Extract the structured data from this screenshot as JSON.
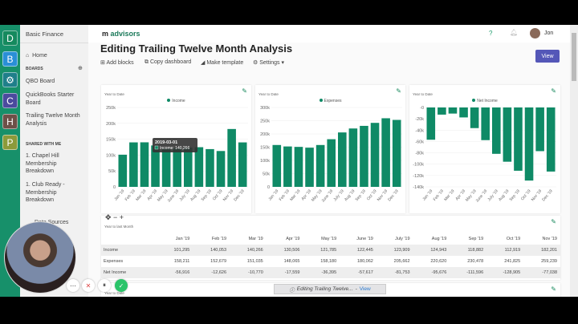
{
  "rail": {
    "tiles": [
      {
        "letter": "D",
        "color": "#158a5e"
      },
      {
        "letter": "B",
        "color": "#2a8fd6"
      },
      {
        "letter": "",
        "color": "#1f7f8a"
      },
      {
        "letter": "C",
        "color": "#4b4a9e"
      },
      {
        "letter": "H",
        "color": "#6e5048"
      },
      {
        "letter": "P",
        "color": "#8c9a3a"
      }
    ]
  },
  "sidebar": {
    "org": "Basic Finance",
    "home": "Home",
    "boards_heading": "BOARDS",
    "boards": [
      "QBO Board",
      "QuickBooks Starter Board",
      "Trailing Twelve Month Analysis"
    ],
    "shared_heading": "SHARED WITH ME",
    "shared": [
      "1. Chapel Hill Membership Breakdown",
      "1. Club Ready - Membership Breakdown"
    ],
    "data_sources": "Data Sources"
  },
  "header": {
    "brand": "advisors",
    "user": "Jon",
    "help_icon": "question-circle-icon",
    "bell_icon": "bell-icon"
  },
  "page": {
    "title": "Editing Trailing Twelve Month Analysis",
    "view_label": "View"
  },
  "toolbar": {
    "add_blocks": "Add blocks",
    "copy": "Copy dashboard",
    "template": "Make template",
    "settings": "Settings"
  },
  "colors": {
    "bar": "#0f8a66",
    "accent": "#5457b8"
  },
  "chart_data": [
    {
      "type": "bar",
      "subtitle": "Year to Date",
      "categories": [
        "Jan '19",
        "Feb '19",
        "Mar '19",
        "Apr '19",
        "May '19",
        "June '19",
        "July '19",
        "Aug '19",
        "Sep '19",
        "Oct '19",
        "Nov '19",
        "Dec '19"
      ],
      "series": [
        {
          "name": "Income",
          "values": [
            101295,
            140053,
            140266,
            130506,
            121785,
            122445,
            123909,
            124943,
            118882,
            112919,
            182201,
            140000
          ]
        }
      ],
      "ylim": [
        0,
        250000
      ],
      "ticks": [
        "0",
        "50k",
        "100k",
        "150k",
        "200k",
        "250k"
      ],
      "tooltip": {
        "title": "2019-03-01",
        "text": "Income: 140,266"
      }
    },
    {
      "type": "bar",
      "subtitle": "Year to Date",
      "categories": [
        "Jan '19",
        "Feb '19",
        "Mar '19",
        "Apr '19",
        "May '19",
        "June '19",
        "July '19",
        "Aug '19",
        "Sep '19",
        "Oct '19",
        "Nov '19",
        "Dec '19"
      ],
      "series": [
        {
          "name": "Expenses",
          "values": [
            158211,
            152679,
            151035,
            148065,
            158180,
            180062,
            205662,
            220620,
            230478,
            241825,
            259239,
            253000
          ]
        }
      ],
      "ylim": [
        0,
        300000
      ],
      "ticks": [
        "0",
        "50k",
        "100k",
        "150k",
        "200k",
        "250k",
        "300k"
      ]
    },
    {
      "type": "bar",
      "subtitle": "Year to Date",
      "categories": [
        "Jan '19",
        "Feb '19",
        "Mar '19",
        "Apr '19",
        "May '19",
        "June '19",
        "July '19",
        "Aug '19",
        "Sep '19",
        "Oct '19",
        "Nov '19",
        "Dec '19"
      ],
      "series": [
        {
          "name": "Net Income",
          "values": [
            -56916,
            -12626,
            -10770,
            -17559,
            -36395,
            -57617,
            -81753,
            -95676,
            -111596,
            -128905,
            -77038,
            -113000
          ]
        }
      ],
      "ylim": [
        -140000,
        0
      ],
      "ticks": [
        "-140k",
        "-120k",
        "-100k",
        "-80k",
        "-60k",
        "-40k",
        "-20k",
        "-0"
      ]
    }
  ],
  "table": {
    "subtitle": "Year to last Month",
    "columns": [
      "Jan '19",
      "Feb '19",
      "Mar '19",
      "Apr '19",
      "May '19",
      "June '19",
      "July '19",
      "Aug '19",
      "Sep '19",
      "Oct '19",
      "Nov '19"
    ],
    "rows": [
      {
        "label": "Income",
        "values": [
          "101,295",
          "140,053",
          "140,266",
          "130,506",
          "121,785",
          "122,445",
          "123,909",
          "124,943",
          "118,882",
          "112,919",
          "182,201"
        ]
      },
      {
        "label": "Expenses",
        "values": [
          "158,211",
          "152,679",
          "151,035",
          "148,065",
          "158,180",
          "180,062",
          "205,662",
          "220,620",
          "230,478",
          "241,825",
          "259,239"
        ]
      },
      {
        "label": "Net Income",
        "values": [
          "-56,916",
          "-12,626",
          "-10,770",
          "-17,559",
          "-36,395",
          "-57,617",
          "-81,753",
          "-95,676",
          "-111,596",
          "-128,905",
          "-77,038"
        ]
      }
    ]
  },
  "next_block": {
    "subtitle": "Year to Date"
  },
  "toast": {
    "text": "Editing Trailing Twelve...",
    "link": "View"
  }
}
